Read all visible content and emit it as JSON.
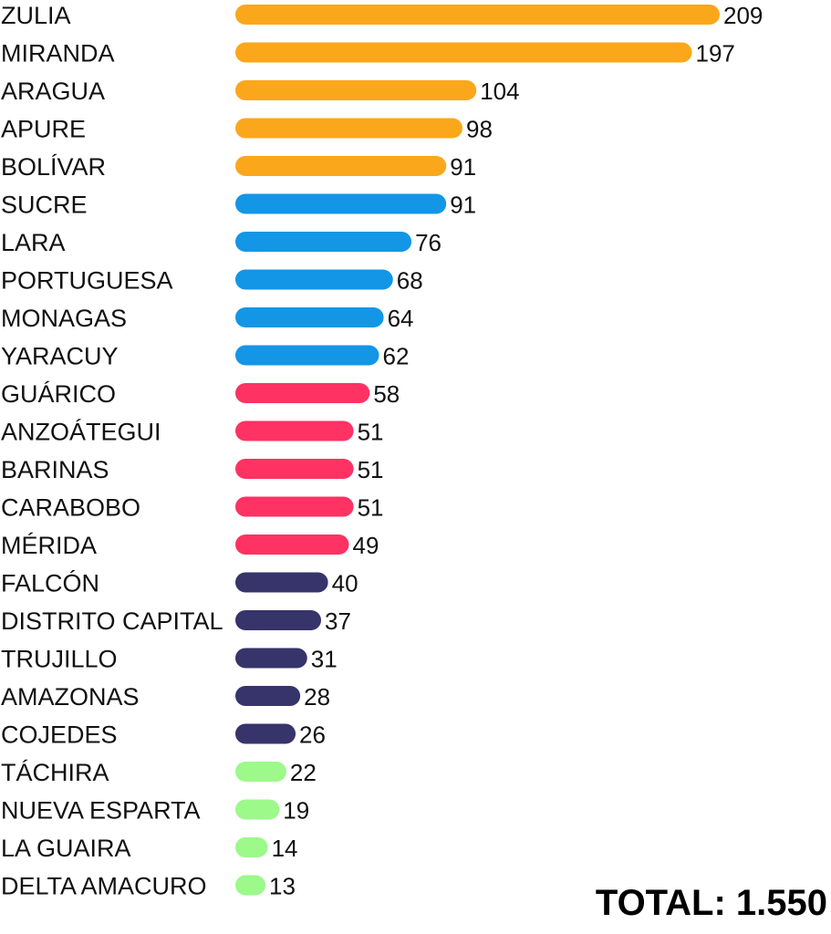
{
  "chart_data": {
    "type": "bar",
    "orientation": "horizontal",
    "title": "",
    "xlabel": "",
    "ylabel": "",
    "xlim": [
      0,
      209
    ],
    "grid": false,
    "legend": "none",
    "categories": [
      "ZULIA",
      "MIRANDA",
      "ARAGUA",
      "APURE",
      "BOLÍVAR",
      "SUCRE",
      "LARA",
      "PORTUGUESA",
      "MONAGAS",
      "YARACUY",
      "GUÁRICO",
      "ANZOÁTEGUI",
      "BARINAS",
      "CARABOBO",
      "MÉRIDA",
      "FALCÓN",
      "DISTRITO CAPITAL",
      "TRUJILLO",
      "AMAZONAS",
      "COJEDES",
      "TÁCHIRA",
      "NUEVA ESPARTA",
      "LA GUAIRA",
      "DELTA AMACURO"
    ],
    "values": [
      209,
      197,
      104,
      98,
      91,
      91,
      76,
      68,
      64,
      62,
      58,
      51,
      51,
      51,
      49,
      40,
      37,
      31,
      28,
      26,
      22,
      19,
      14,
      13
    ],
    "bar_colors": [
      "#FBA71B",
      "#FBA71B",
      "#FBA71B",
      "#FBA71B",
      "#FBA71B",
      "#1396E6",
      "#1396E6",
      "#1396E6",
      "#1396E6",
      "#1396E6",
      "#FE3263",
      "#FE3263",
      "#FE3263",
      "#FE3263",
      "#FE3263",
      "#36346A",
      "#36346A",
      "#36346A",
      "#36346A",
      "#36346A",
      "#9CF98A",
      "#9CF98A",
      "#9CF98A",
      "#9CF98A"
    ]
  },
  "total_label": "TOTAL: 1.550"
}
